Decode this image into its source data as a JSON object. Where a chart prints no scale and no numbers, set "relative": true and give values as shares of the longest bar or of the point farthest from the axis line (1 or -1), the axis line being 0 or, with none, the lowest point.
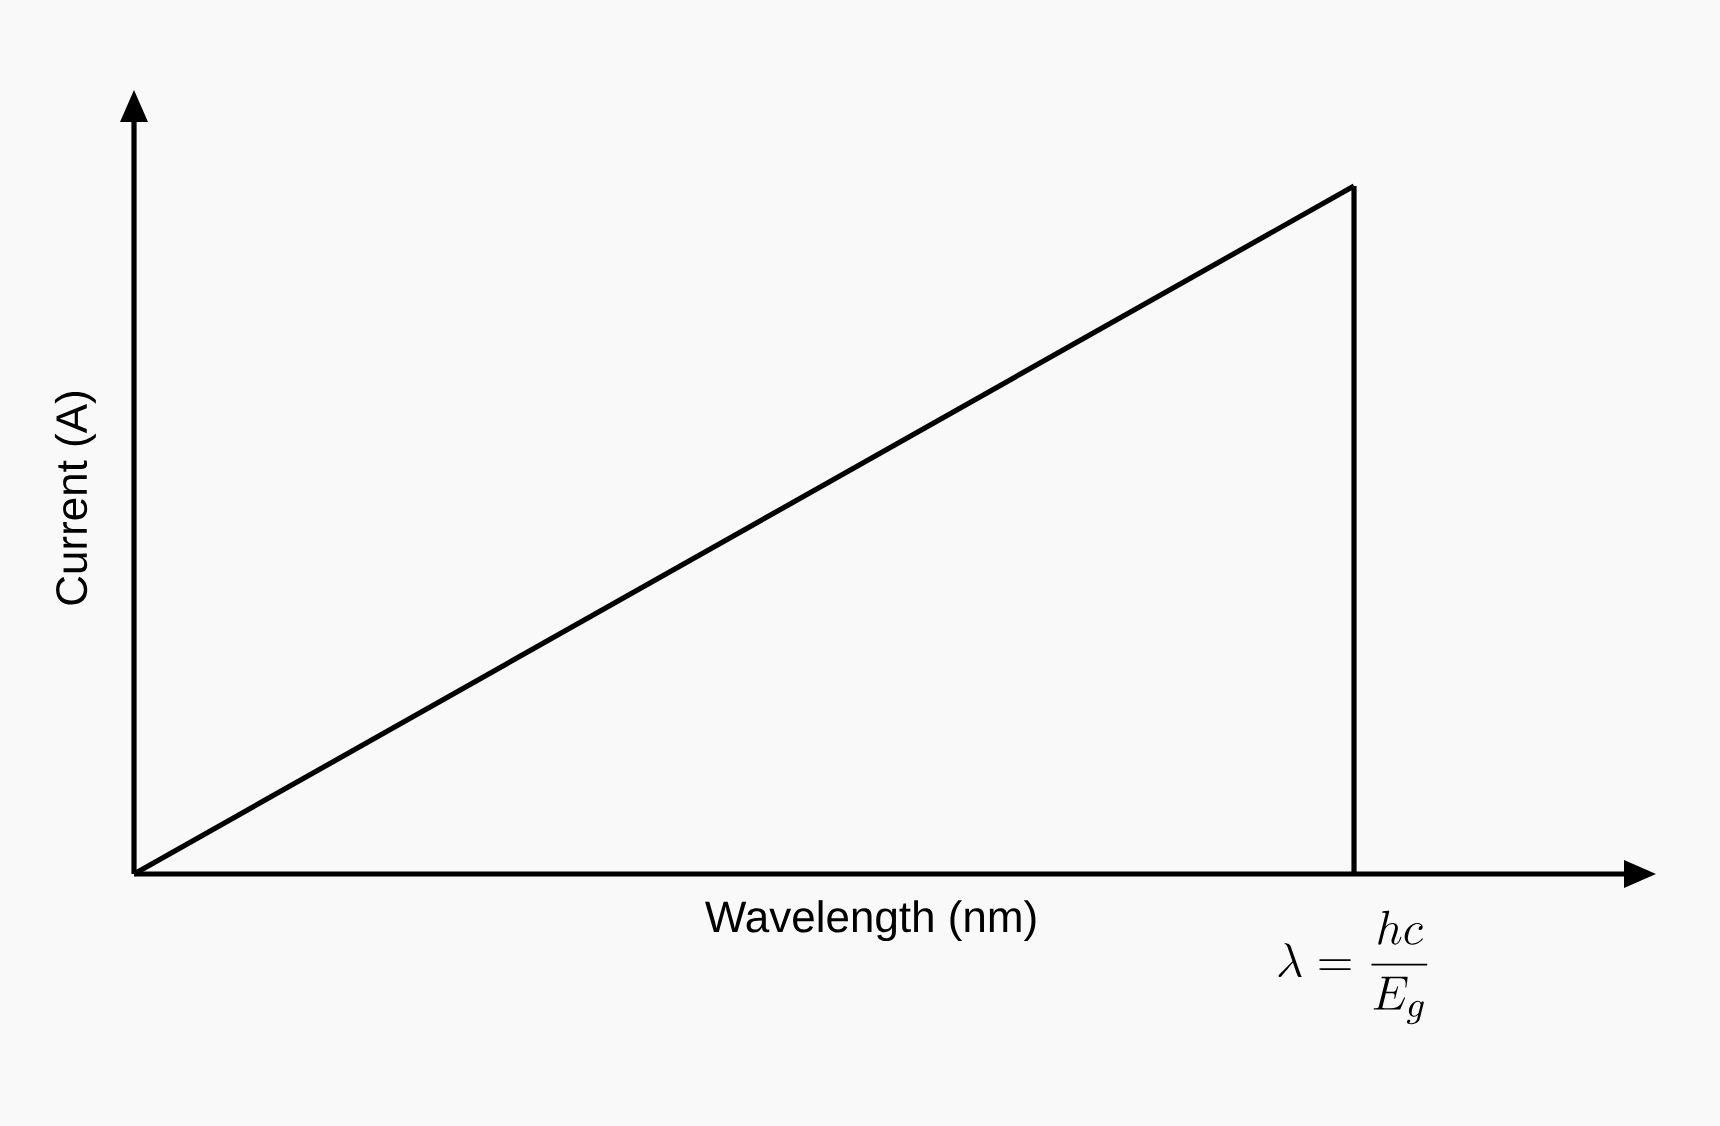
{
  "chart_data": {
    "type": "line",
    "relative": true,
    "xlabel": "Wavelength (nm)",
    "ylabel": "Current (A)",
    "categories": [
      null,
      null
    ],
    "series": [
      {
        "color": "#000000",
        "values": [
          0,
          1
        ]
      }
    ],
    "marker": "none",
    "line_style": "solid",
    "annotations": [
      "\\lambda=\\frac{hc}{E_g}"
    ]
  }
}
